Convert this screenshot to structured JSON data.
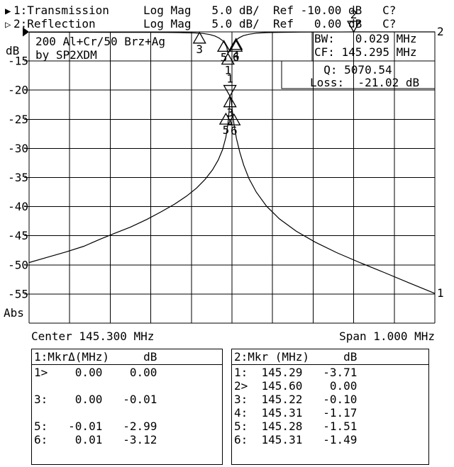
{
  "window": {
    "background": "#ffffff",
    "foreground": "#000000"
  },
  "header": {
    "channel1_icon": "▶",
    "channel2_icon": "▷",
    "line1": "1:Transmission     Log Mag   5.0 dB/  Ref -10.00 dB   C?",
    "line2": "2:Reflection       Log Mag   5.0 dB/  Ref   0.00 dB   C?"
  },
  "plot": {
    "title_line1": "200 Al+Cr/50 Brz+Ag",
    "title_line2": "by SP2XDM",
    "ylabel": "dB",
    "yformat": "Abs",
    "center_label": "Center 145.300 MHz",
    "span_label": "Span 1.000 MHz",
    "info_box1": {
      "line1": "BW:   0.029 MHz",
      "line2": "CF: 145.295 MHz"
    },
    "info_box2": {
      "line1": "  Q: 5070.54",
      "line2": "Loss:  -21.02 dB"
    }
  },
  "chart_data": {
    "type": "line",
    "title": "200 Al+Cr/50 Brz+Ag by SP2XDM",
    "x_axis": {
      "label": "MHz",
      "center": 145.3,
      "span": 1.0,
      "min": 144.8,
      "max": 145.8,
      "divisions": 10,
      "grid": true
    },
    "y_axis": {
      "label": "dB",
      "format": "Abs",
      "db_per_div": 5.0,
      "divisions": 10,
      "ticks": [
        -15,
        -20,
        -25,
        -30,
        -35,
        -40,
        -45,
        -50,
        -55
      ],
      "ch1_ref_db": -10.0,
      "ch2_ref_db": 0.0
    },
    "measurements": {
      "BW_MHz": 0.029,
      "CF_MHz": 145.295,
      "Q": 5070.54,
      "Loss_dB": -21.02
    },
    "series": [
      {
        "name": "Transmission",
        "channel": 1,
        "ref_db": -10.0,
        "trace_label": "1",
        "points": [
          [
            144.8,
            -49.6
          ],
          [
            144.845,
            -48.7
          ],
          [
            144.89,
            -47.8
          ],
          [
            144.935,
            -46.8
          ],
          [
            144.975,
            -45.6
          ],
          [
            145.01,
            -44.6
          ],
          [
            145.05,
            -43.5
          ],
          [
            145.09,
            -42.2
          ],
          [
            145.125,
            -40.9
          ],
          [
            145.158,
            -39.6
          ],
          [
            145.188,
            -38.2
          ],
          [
            145.213,
            -36.8
          ],
          [
            145.234,
            -35.3
          ],
          [
            145.252,
            -33.7
          ],
          [
            145.266,
            -32.0
          ],
          [
            145.277,
            -30.2
          ],
          [
            145.285,
            -28.1
          ],
          [
            145.29,
            -25.8
          ],
          [
            145.293,
            -23.5
          ],
          [
            145.2955,
            -21.05
          ],
          [
            145.298,
            -21.8
          ],
          [
            145.301,
            -23.6
          ],
          [
            145.305,
            -25.9
          ],
          [
            145.311,
            -28.3
          ],
          [
            145.319,
            -30.6
          ],
          [
            145.329,
            -32.9
          ],
          [
            145.342,
            -35.2
          ],
          [
            145.36,
            -37.5
          ],
          [
            145.385,
            -39.9
          ],
          [
            145.417,
            -42.1
          ],
          [
            145.458,
            -44.2
          ],
          [
            145.505,
            -46.1
          ],
          [
            145.558,
            -47.9
          ],
          [
            145.615,
            -49.6
          ],
          [
            145.675,
            -51.3
          ],
          [
            145.737,
            -53.1
          ],
          [
            145.8,
            -54.9
          ]
        ]
      },
      {
        "name": "Reflection",
        "channel": 2,
        "ref_db": 0.0,
        "trace_label": "2",
        "points": [
          [
            144.8,
            -0.05
          ],
          [
            144.9,
            -0.06
          ],
          [
            145.0,
            -0.07
          ],
          [
            145.08,
            -0.08
          ],
          [
            145.14,
            -0.1
          ],
          [
            145.18,
            -0.13
          ],
          [
            145.21,
            -0.18
          ],
          [
            145.23,
            -0.28
          ],
          [
            145.245,
            -0.45
          ],
          [
            145.258,
            -0.7
          ],
          [
            145.268,
            -1.05
          ],
          [
            145.276,
            -1.45
          ],
          [
            145.282,
            -1.95
          ],
          [
            145.287,
            -2.6
          ],
          [
            145.29,
            -3.71
          ],
          [
            145.294,
            -3.3
          ],
          [
            145.298,
            -2.55
          ],
          [
            145.304,
            -1.85
          ],
          [
            145.31,
            -1.4
          ],
          [
            145.318,
            -1.0
          ],
          [
            145.328,
            -0.65
          ],
          [
            145.342,
            -0.4
          ],
          [
            145.36,
            -0.22
          ],
          [
            145.385,
            -0.12
          ],
          [
            145.42,
            -0.07
          ],
          [
            145.47,
            -0.04
          ],
          [
            145.54,
            -0.02
          ],
          [
            145.6,
            0.0
          ],
          [
            145.7,
            0.0
          ],
          [
            145.8,
            0.0
          ]
        ]
      }
    ],
    "markers": [
      {
        "channel": 1,
        "label": "1",
        "freq": 145.295,
        "db": -21.02,
        "active": true
      },
      {
        "channel": 1,
        "label": "3",
        "freq": 145.295,
        "db": -21.03,
        "active": false
      },
      {
        "channel": 1,
        "label": "5",
        "freq": 145.285,
        "db": -24.01,
        "active": false
      },
      {
        "channel": 1,
        "label": "6",
        "freq": 145.305,
        "db": -24.14,
        "active": false
      },
      {
        "channel": 2,
        "label": "1",
        "freq": 145.29,
        "db": -3.71,
        "active": false
      },
      {
        "channel": 2,
        "label": "2",
        "freq": 145.6,
        "db": 0.0,
        "active": true
      },
      {
        "channel": 2,
        "label": "3",
        "freq": 145.22,
        "db": -0.1,
        "active": false
      },
      {
        "channel": 2,
        "label": "4",
        "freq": 145.31,
        "db": -1.17,
        "active": false
      },
      {
        "channel": 2,
        "label": "5",
        "freq": 145.28,
        "db": -1.51,
        "active": false
      },
      {
        "channel": 2,
        "label": "6",
        "freq": 145.31,
        "db": -1.49,
        "active": false
      }
    ]
  },
  "tables": {
    "left": {
      "header": "1:MkrΔ(MHz)     dB",
      "rows": [
        "1>    0.00    0.00",
        "",
        "3:    0.00   -0.01",
        "",
        "5:   -0.01   -2.99",
        "6:    0.01   -3.12"
      ]
    },
    "right": {
      "header": "2:Mkr (MHz)     dB",
      "rows": [
        "1:  145.29   -3.71",
        "2>  145.60    0.00",
        "3:  145.22   -0.10",
        "4:  145.31   -1.17",
        "5:  145.28   -1.51",
        "6:  145.31   -1.49"
      ]
    }
  }
}
